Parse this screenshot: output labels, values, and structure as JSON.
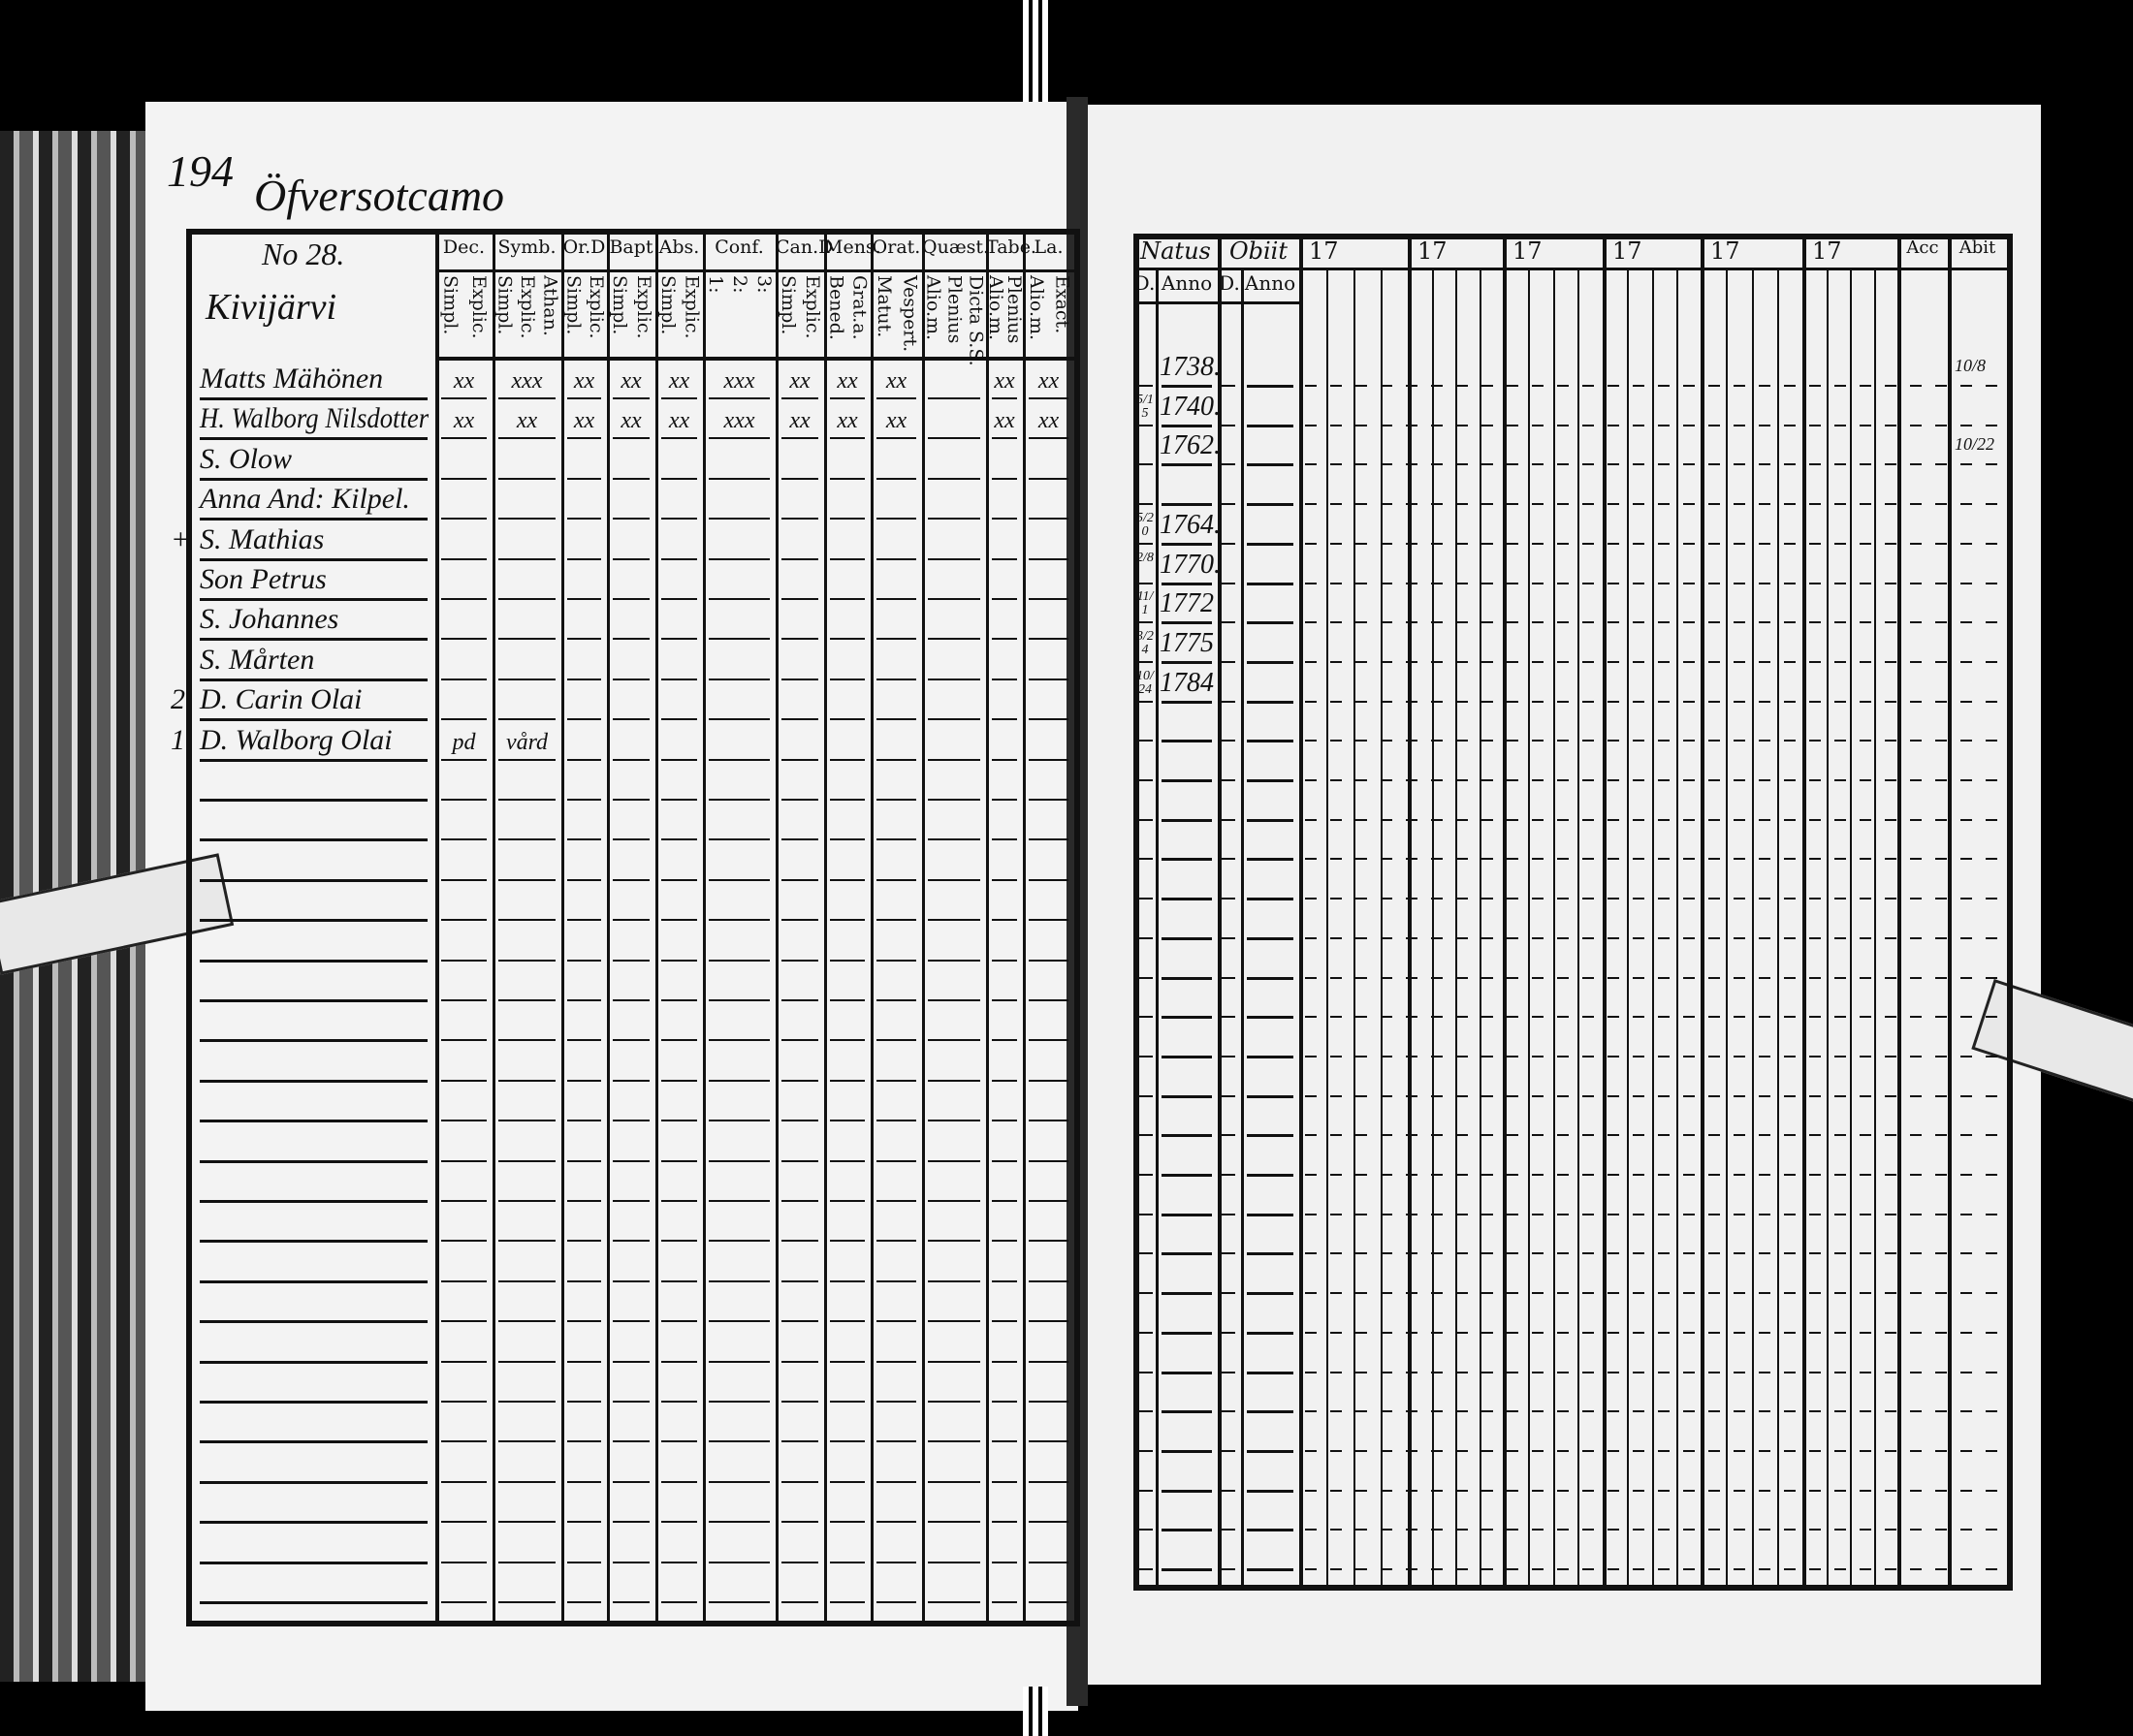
{
  "left_page": {
    "page_number": "194",
    "parish": "Öfversotcamo",
    "entry_number": "No 28.",
    "farm": "Kivijärvi",
    "column_groups": [
      {
        "title": "Dec.",
        "subs": [
          "Explic.",
          "Simpl."
        ]
      },
      {
        "title": "Symb.",
        "subs": [
          "Athan.",
          "Explic.",
          "Simpl."
        ]
      },
      {
        "title": "Or.D",
        "subs": [
          "Explic.",
          "Simpl."
        ]
      },
      {
        "title": "Bapt",
        "subs": [
          "Explic.",
          "Simpl."
        ]
      },
      {
        "title": "Abs.",
        "subs": [
          "Explic.",
          "Simpl."
        ]
      },
      {
        "title": "Conf.",
        "subs": [
          "3:",
          "2:",
          "1:"
        ]
      },
      {
        "title": "Can.D",
        "subs": [
          "Explic.",
          "Simpl."
        ]
      },
      {
        "title": "Mens.",
        "subs": [
          "Grat.a.",
          "Bened."
        ]
      },
      {
        "title": "Orat.",
        "subs": [
          "Vespert.",
          "Matut."
        ]
      },
      {
        "title": "Quæst.",
        "subs": [
          "Dicta S.S.",
          "Plenius",
          "Alio.m."
        ]
      },
      {
        "title": "Tabe.",
        "subs": [
          "Plenius",
          "Alio.m."
        ]
      },
      {
        "title": "La.",
        "subs": [
          "Exact.",
          "Alio.m."
        ]
      }
    ],
    "persons": [
      {
        "margin": "",
        "name": "Matts Mähönen",
        "marks": [
          "xx",
          "xxx",
          "xx",
          "xx",
          "xx",
          "xxx",
          "xx",
          "xx",
          "xx",
          "",
          "xx",
          "xx"
        ]
      },
      {
        "margin": "",
        "name": "H. Walborg Nilsdotter",
        "marks": [
          "xx",
          "xx",
          "xx",
          "xx",
          "xx",
          "xxx",
          "xx",
          "xx",
          "xx",
          "",
          "xx",
          "xx"
        ]
      },
      {
        "margin": "",
        "name": "S. Olow",
        "marks": []
      },
      {
        "margin": "",
        "name": "Anna And: Kilpel.",
        "marks": []
      },
      {
        "margin": "+",
        "name": "S. Mathias",
        "marks": []
      },
      {
        "margin": "",
        "name": "Son Petrus",
        "marks": []
      },
      {
        "margin": "",
        "name": "S. Johannes",
        "marks": []
      },
      {
        "margin": "",
        "name": "S. Mårten",
        "marks": []
      },
      {
        "margin": "2",
        "name": "D. Carin Olai",
        "marks": []
      },
      {
        "margin": "1",
        "name": "D. Walborg Olai",
        "marks": [
          "pd",
          "vård"
        ]
      }
    ]
  },
  "right_page": {
    "headers": {
      "natus": "Natus",
      "obiit": "Obiit",
      "day": "D.",
      "anno": "Anno",
      "acc": "Acc",
      "abit": "Abit"
    },
    "year_groups": [
      "17",
      "17",
      "17",
      "17",
      "17",
      "17"
    ],
    "births": [
      {
        "day": "",
        "year": "1738."
      },
      {
        "day": "5/15",
        "year": "1740."
      },
      {
        "day": "",
        "year": "1762."
      },
      {
        "day": "",
        "year": ""
      },
      {
        "day": "5/20",
        "year": "1764."
      },
      {
        "day": "2/8",
        "year": "1770."
      },
      {
        "day": "11/1",
        "year": "1772"
      },
      {
        "day": "3/24",
        "year": "1775"
      },
      {
        "day": "10/24",
        "year": "1784"
      }
    ],
    "acc_abit_marks": [
      "10/8",
      "10/22"
    ]
  }
}
